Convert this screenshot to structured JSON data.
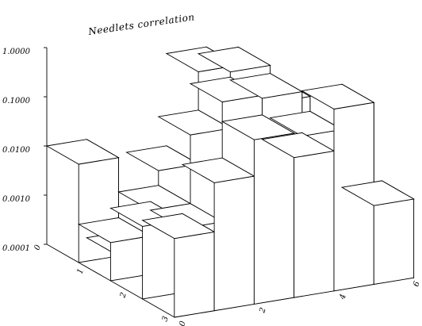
{
  "chart_data": {
    "type": "bar3d",
    "title": "Needlets correlation",
    "z_scale": "log",
    "zlim": [
      0.0001,
      1.0
    ],
    "z_tick_labels": [
      "0.0001",
      "0.0010",
      "0.0100",
      "0.1000",
      "1.0000"
    ],
    "x_tick_labels": [
      "0",
      "2",
      "4",
      "6"
    ],
    "y_tick_labels": [
      "0",
      "1",
      "2",
      "3"
    ],
    "grid": false,
    "x_bins": 6,
    "y_bins": 4,
    "values": [
      [
        0.01,
        5e-05,
        0.004,
        0.3,
        0.0018,
        0.0008
      ],
      [
        0.0006,
        0.002,
        0.05,
        0.7,
        0.12,
        0.0011
      ],
      [
        0.003,
        0.002,
        0.55,
        0.48,
        0.06,
        0.002
      ],
      [
        0.004,
        0.04,
        0.22,
        0.07,
        0.5,
        0.004
      ]
    ]
  }
}
